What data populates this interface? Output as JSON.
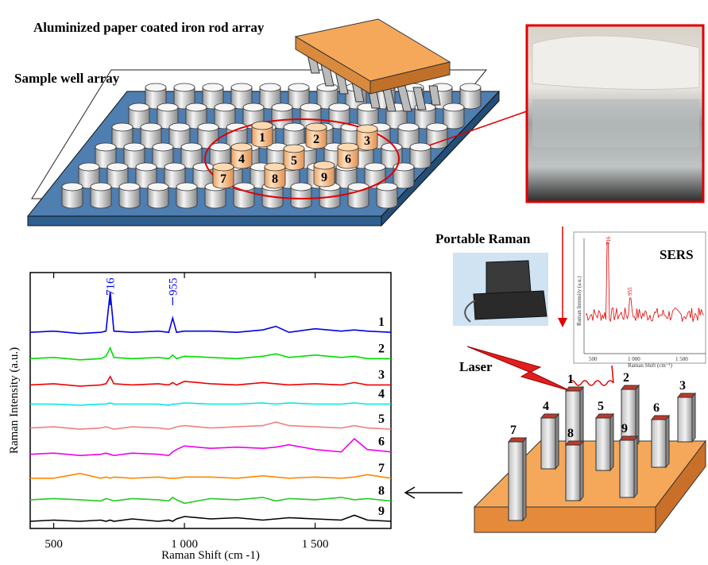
{
  "labels": {
    "rod_array": "Aluminized paper coated iron rod array",
    "well_array": "Sample well array",
    "portable_raman": "Portable Raman",
    "sers": "SERS",
    "laser": "Laser"
  },
  "wells": [
    "1",
    "2",
    "3",
    "4",
    "5",
    "6",
    "7",
    "8",
    "9"
  ],
  "rods": [
    "1",
    "2",
    "3",
    "4",
    "5",
    "6",
    "7",
    "8",
    "9"
  ],
  "inset": {
    "peaks": [
      "716",
      "955"
    ],
    "xticks": [
      "500",
      "1 000",
      "1 500"
    ],
    "xlabel": "Raman Shift (cm⁻¹)",
    "ylabel": "Raman Intensity (a.u.)"
  },
  "chart_data": {
    "type": "line",
    "xlabel": "Raman Shift (cm -1)",
    "ylabel": "Raman Intensity (a.u.)",
    "x": [
      410,
      500,
      600,
      680,
      700,
      716,
      730,
      800,
      900,
      940,
      955,
      970,
      1000,
      1100,
      1200,
      1300,
      1350,
      1400,
      1500,
      1600,
      1650,
      1700,
      1790
    ],
    "xlim": [
      410,
      1790
    ],
    "ylim": [
      0,
      10.7
    ],
    "xticks": [
      500,
      {
        "value": 1000,
        "label": "1 000"
      },
      {
        "value": 1500,
        "label": "1 500"
      }
    ],
    "annotations": [
      {
        "text": "716",
        "x": 716
      },
      {
        "text": "955",
        "x": 955
      }
    ],
    "series": [
      {
        "name": "1",
        "color": "#0000e6",
        "values": [
          8.2,
          8.25,
          8.15,
          8.2,
          8.25,
          9.9,
          8.25,
          8.2,
          8.25,
          8.2,
          8.8,
          8.2,
          8.25,
          8.25,
          8.2,
          8.3,
          8.45,
          8.2,
          8.35,
          8.25,
          8.3,
          8.25,
          8.2
        ]
      },
      {
        "name": "2",
        "color": "#00dd00",
        "values": [
          7.1,
          7.15,
          7.05,
          7.1,
          7.2,
          7.55,
          7.15,
          7.1,
          7.15,
          7.1,
          7.25,
          7.1,
          7.2,
          7.15,
          7.1,
          7.2,
          7.3,
          7.15,
          7.25,
          7.15,
          7.2,
          7.1,
          7.1
        ]
      },
      {
        "name": "3",
        "color": "#ee0000",
        "values": [
          6.0,
          6.05,
          5.95,
          6.0,
          6.05,
          6.35,
          6.05,
          6.0,
          6.05,
          6.0,
          6.1,
          6.0,
          6.15,
          6.05,
          6.0,
          6.1,
          6.05,
          6.0,
          6.05,
          6.0,
          6.1,
          6.0,
          6.0
        ]
      },
      {
        "name": "4",
        "color": "#00e5e5",
        "values": [
          5.2,
          5.2,
          5.15,
          5.2,
          5.2,
          5.25,
          5.2,
          5.2,
          5.2,
          5.15,
          5.2,
          5.2,
          5.25,
          5.2,
          5.2,
          5.25,
          5.2,
          5.25,
          5.2,
          5.2,
          5.25,
          5.2,
          5.2
        ]
      },
      {
        "name": "5",
        "color": "#f08080",
        "values": [
          4.2,
          4.25,
          4.15,
          4.2,
          4.25,
          4.2,
          4.15,
          4.25,
          4.2,
          4.15,
          4.2,
          4.25,
          4.3,
          4.2,
          4.25,
          4.3,
          4.45,
          4.3,
          4.25,
          4.2,
          4.3,
          4.2,
          4.15
        ]
      },
      {
        "name": "6",
        "color": "#ee00ee",
        "values": [
          3.1,
          3.15,
          3.05,
          3.1,
          3.15,
          3.1,
          3.05,
          3.15,
          3.1,
          3.05,
          3.2,
          3.3,
          3.45,
          3.35,
          3.4,
          3.35,
          3.4,
          3.5,
          3.3,
          3.2,
          3.75,
          3.3,
          3.2
        ]
      },
      {
        "name": "7",
        "color": "#ff8800",
        "values": [
          2.1,
          2.1,
          2.3,
          2.1,
          2.15,
          2.1,
          2.15,
          2.1,
          2.15,
          2.1,
          2.1,
          2.1,
          2.15,
          2.15,
          2.1,
          2.2,
          2.15,
          2.1,
          2.15,
          2.1,
          2.15,
          2.25,
          2.1
        ]
      },
      {
        "name": "8",
        "color": "#22cc22",
        "values": [
          1.2,
          1.25,
          1.2,
          1.15,
          1.25,
          1.2,
          1.15,
          1.25,
          1.2,
          1.15,
          1.3,
          1.2,
          1.05,
          1.25,
          1.2,
          1.3,
          1.15,
          1.25,
          1.2,
          1.3,
          1.2,
          1.25,
          1.15
        ]
      },
      {
        "name": "9",
        "color": "#000000",
        "values": [
          0.3,
          0.35,
          0.3,
          0.35,
          0.3,
          0.35,
          0.3,
          0.4,
          0.3,
          0.35,
          0.3,
          0.4,
          0.5,
          0.4,
          0.45,
          0.35,
          0.4,
          0.45,
          0.4,
          0.35,
          0.55,
          0.35,
          0.3
        ]
      }
    ]
  }
}
